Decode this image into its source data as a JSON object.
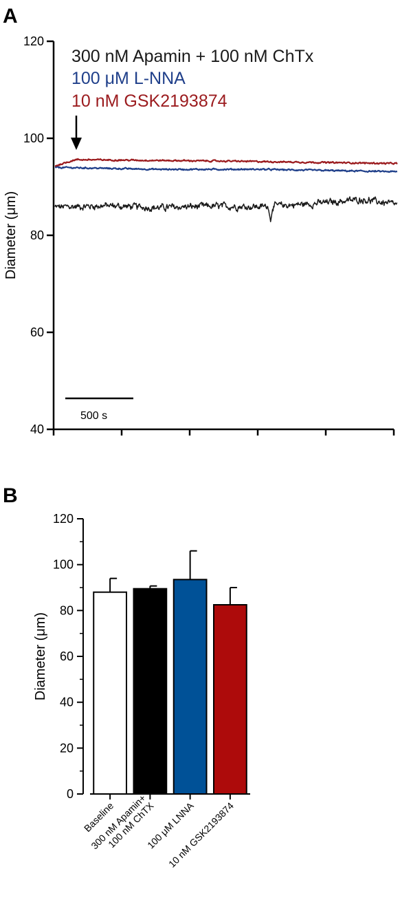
{
  "panel_a": {
    "label": "A",
    "legend": [
      {
        "text": "300 nM Apamin + 100 nM ChTx",
        "color": "#1a1a1a"
      },
      {
        "text": "100 μM L-NNA",
        "color": "#1f3f8a"
      },
      {
        "text": "10 nM GSK2193874",
        "color": "#9b1b1e"
      }
    ],
    "scale_bar_label": "500 s"
  },
  "panel_b": {
    "label": "B"
  },
  "chart_data": [
    {
      "type": "line",
      "ylabel": "Diameter (μm)",
      "ylim": [
        40,
        120
      ],
      "yticks": [
        40,
        60,
        80,
        100,
        120
      ],
      "x_units": "s",
      "x_scale_bar_s": 500,
      "series": [
        {
          "name": "300 nM Apamin + 100 nM ChTx",
          "color": "#1a1a1a",
          "level": 85.9,
          "noise": 0.55,
          "drift": [
            [
              0,
              85.8
            ],
            [
              0.15,
              86.1
            ],
            [
              0.3,
              85.7
            ],
            [
              0.45,
              86.0
            ],
            [
              0.6,
              85.9
            ],
            [
              0.75,
              86.5
            ],
            [
              0.9,
              87.4
            ],
            [
              1.0,
              86.3
            ]
          ],
          "events": [
            {
              "at": 0.63,
              "value": 82.8
            }
          ]
        },
        {
          "name": "100 μM L-NNA",
          "color": "#1f3f8a",
          "level": 93.7,
          "noise": 0.12,
          "drift": [
            [
              0,
              94.0
            ],
            [
              0.3,
              93.6
            ],
            [
              0.6,
              93.6
            ],
            [
              1.0,
              93.1
            ]
          ],
          "events": []
        },
        {
          "name": "10 nM GSK2193874",
          "color": "#9b1b1e",
          "level": 95.3,
          "noise": 0.12,
          "drift": [
            [
              0,
              94.3
            ],
            [
              0.06,
              95.6
            ],
            [
              0.5,
              95.3
            ],
            [
              1.0,
              94.8
            ]
          ],
          "events": []
        }
      ]
    },
    {
      "type": "bar",
      "ylabel": "Diameter (μm)",
      "ylim": [
        0,
        120
      ],
      "yticks": [
        0,
        20,
        40,
        60,
        80,
        100,
        120
      ],
      "categories": [
        "Baseline",
        "300 nM Apamin+\n100 nM ChTX",
        "100 μM LNNA",
        "10 nM GSK2193874"
      ],
      "values": [
        88,
        89.5,
        93.5,
        82.5
      ],
      "errors": [
        6,
        1.2,
        12.5,
        7.5
      ],
      "colors": [
        "#ffffff",
        "#000000",
        "#005197",
        "#ad0b0b"
      ]
    }
  ]
}
